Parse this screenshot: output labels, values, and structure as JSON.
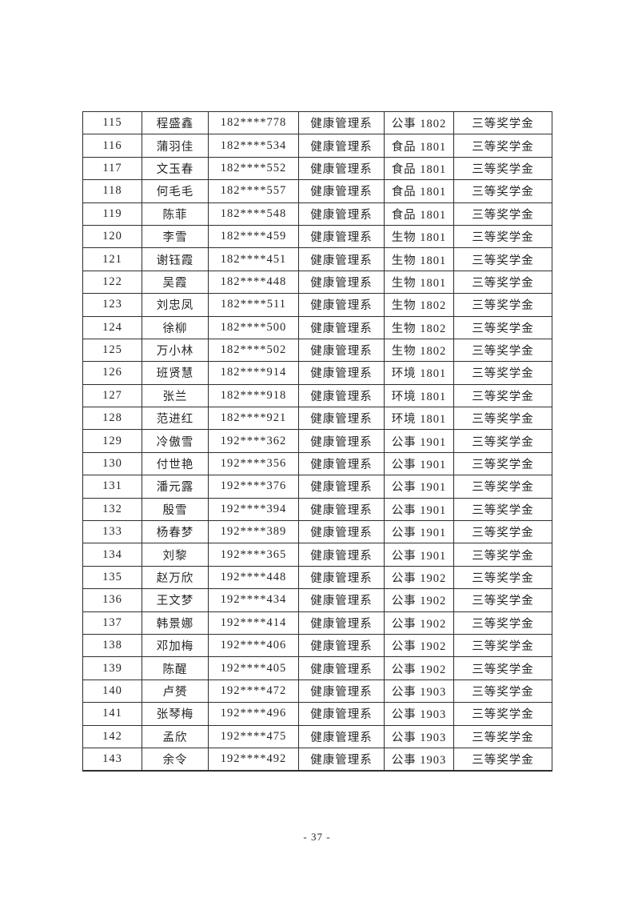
{
  "page_number": "- 37 -",
  "table": {
    "rows": [
      {
        "no": "115",
        "name": "程盛鑫",
        "phone": "182****778",
        "dept": "健康管理系",
        "class": "公事 1802",
        "award": "三等奖学金"
      },
      {
        "no": "116",
        "name": "蒲羽佳",
        "phone": "182****534",
        "dept": "健康管理系",
        "class": "食品 1801",
        "award": "三等奖学金"
      },
      {
        "no": "117",
        "name": "文玉春",
        "phone": "182****552",
        "dept": "健康管理系",
        "class": "食品 1801",
        "award": "三等奖学金"
      },
      {
        "no": "118",
        "name": "何毛毛",
        "phone": "182****557",
        "dept": "健康管理系",
        "class": "食品 1801",
        "award": "三等奖学金"
      },
      {
        "no": "119",
        "name": "陈菲",
        "phone": "182****548",
        "dept": "健康管理系",
        "class": "食品 1801",
        "award": "三等奖学金"
      },
      {
        "no": "120",
        "name": "李雪",
        "phone": "182****459",
        "dept": "健康管理系",
        "class": "生物 1801",
        "award": "三等奖学金"
      },
      {
        "no": "121",
        "name": "谢钰霞",
        "phone": "182****451",
        "dept": "健康管理系",
        "class": "生物 1801",
        "award": "三等奖学金"
      },
      {
        "no": "122",
        "name": "吴霞",
        "phone": "182****448",
        "dept": "健康管理系",
        "class": "生物 1801",
        "award": "三等奖学金"
      },
      {
        "no": "123",
        "name": "刘忠凤",
        "phone": "182****511",
        "dept": "健康管理系",
        "class": "生物 1802",
        "award": "三等奖学金"
      },
      {
        "no": "124",
        "name": "徐柳",
        "phone": "182****500",
        "dept": "健康管理系",
        "class": "生物 1802",
        "award": "三等奖学金"
      },
      {
        "no": "125",
        "name": "万小林",
        "phone": "182****502",
        "dept": "健康管理系",
        "class": "生物 1802",
        "award": "三等奖学金"
      },
      {
        "no": "126",
        "name": "班贤慧",
        "phone": "182****914",
        "dept": "健康管理系",
        "class": "环境 1801",
        "award": "三等奖学金"
      },
      {
        "no": "127",
        "name": "张兰",
        "phone": "182****918",
        "dept": "健康管理系",
        "class": "环境 1801",
        "award": "三等奖学金"
      },
      {
        "no": "128",
        "name": "范进红",
        "phone": "182****921",
        "dept": "健康管理系",
        "class": "环境 1801",
        "award": "三等奖学金"
      },
      {
        "no": "129",
        "name": "冷傲雪",
        "phone": "192****362",
        "dept": "健康管理系",
        "class": "公事 1901",
        "award": "三等奖学金"
      },
      {
        "no": "130",
        "name": "付世艳",
        "phone": "192****356",
        "dept": "健康管理系",
        "class": "公事 1901",
        "award": "三等奖学金"
      },
      {
        "no": "131",
        "name": "潘元露",
        "phone": "192****376",
        "dept": "健康管理系",
        "class": "公事 1901",
        "award": "三等奖学金"
      },
      {
        "no": "132",
        "name": "殷雪",
        "phone": "192****394",
        "dept": "健康管理系",
        "class": "公事 1901",
        "award": "三等奖学金"
      },
      {
        "no": "133",
        "name": "杨春梦",
        "phone": "192****389",
        "dept": "健康管理系",
        "class": "公事 1901",
        "award": "三等奖学金"
      },
      {
        "no": "134",
        "name": "刘黎",
        "phone": "192****365",
        "dept": "健康管理系",
        "class": "公事 1901",
        "award": "三等奖学金"
      },
      {
        "no": "135",
        "name": "赵万欣",
        "phone": "192****448",
        "dept": "健康管理系",
        "class": "公事 1902",
        "award": "三等奖学金"
      },
      {
        "no": "136",
        "name": "王文梦",
        "phone": "192****434",
        "dept": "健康管理系",
        "class": "公事 1902",
        "award": "三等奖学金"
      },
      {
        "no": "137",
        "name": "韩景娜",
        "phone": "192****414",
        "dept": "健康管理系",
        "class": "公事 1902",
        "award": "三等奖学金"
      },
      {
        "no": "138",
        "name": "邓加梅",
        "phone": "192****406",
        "dept": "健康管理系",
        "class": "公事 1902",
        "award": "三等奖学金"
      },
      {
        "no": "139",
        "name": "陈醒",
        "phone": "192****405",
        "dept": "健康管理系",
        "class": "公事 1902",
        "award": "三等奖学金"
      },
      {
        "no": "140",
        "name": "卢赟",
        "phone": "192****472",
        "dept": "健康管理系",
        "class": "公事 1903",
        "award": "三等奖学金"
      },
      {
        "no": "141",
        "name": "张琴梅",
        "phone": "192****496",
        "dept": "健康管理系",
        "class": "公事 1903",
        "award": "三等奖学金"
      },
      {
        "no": "142",
        "name": "孟欣",
        "phone": "192****475",
        "dept": "健康管理系",
        "class": "公事 1903",
        "award": "三等奖学金"
      },
      {
        "no": "143",
        "name": "余令",
        "phone": "192****492",
        "dept": "健康管理系",
        "class": "公事 1903",
        "award": "三等奖学金"
      }
    ]
  }
}
